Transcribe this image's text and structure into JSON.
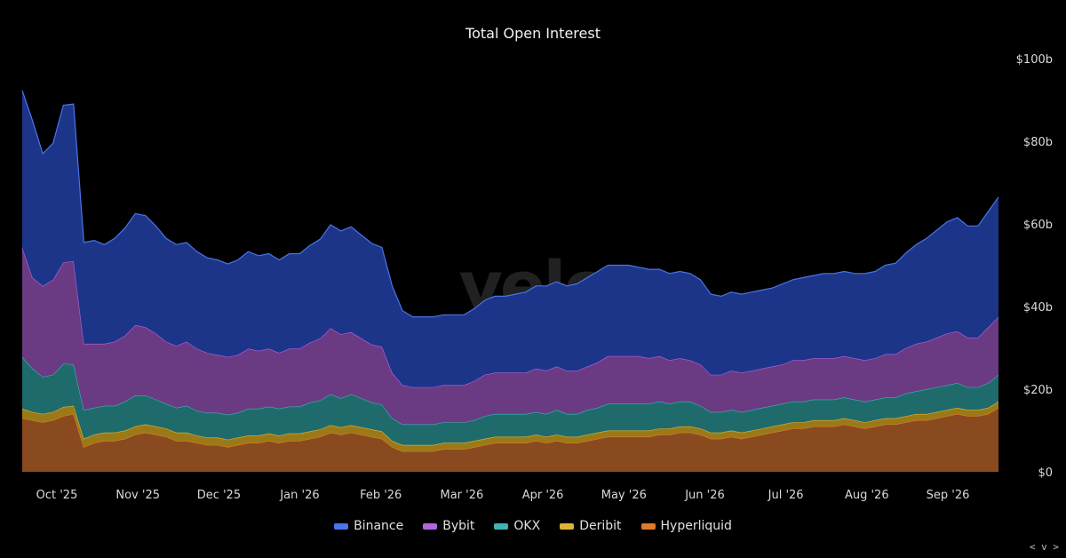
{
  "chart_data": {
    "type": "area",
    "stacked": true,
    "title": "Total Open Interest",
    "watermark": "velo",
    "x_labels": [
      "Oct '25",
      "Nov '25",
      "Dec '25",
      "Jan '26",
      "Feb '26",
      "Mar '26",
      "Apr '26",
      "May '26",
      "Jun '26",
      "Jul '26",
      "Aug '26",
      "Sep '26"
    ],
    "y_ticks": [
      "$0",
      "$20b",
      "$40b",
      "$60b",
      "$80b",
      "$100b"
    ],
    "y_unit": "billions USD",
    "ylim": [
      0,
      100
    ],
    "y_axis_position": "right",
    "grid": false,
    "legend_position": "bottom",
    "series": [
      {
        "name": "Hyperliquid",
        "color": "#8a4a1f",
        "line_color": "#e07a2a",
        "values": [
          13.0,
          12.5,
          12.0,
          12.5,
          13.5,
          14.0,
          6.0,
          7.0,
          7.5,
          7.5,
          8.0,
          9.0,
          9.5,
          9.0,
          8.5,
          7.5,
          7.5,
          7.0,
          6.5,
          6.5,
          6.0,
          6.5,
          7.0,
          7.0,
          7.5,
          7.0,
          7.5,
          7.5,
          8.0,
          8.5,
          9.5,
          9.0,
          9.5,
          9.0,
          8.5,
          8.0,
          6.0,
          5.0,
          5.0,
          5.0,
          5.0,
          5.5,
          5.5,
          5.5,
          6.0,
          6.5,
          7.0,
          7.0,
          7.0,
          7.0,
          7.5,
          7.0,
          7.5,
          7.0,
          7.0,
          7.5,
          8.0,
          8.5,
          8.5,
          8.5,
          8.5,
          8.5,
          9.0,
          9.0,
          9.5,
          9.5,
          9.0,
          8.0,
          8.0,
          8.5,
          8.0,
          8.5,
          9.0,
          9.5,
          10.0,
          10.5,
          10.5,
          11.0,
          11.0,
          11.0,
          11.5,
          11.0,
          10.5,
          11.0,
          11.5,
          11.5,
          12.0,
          12.5,
          12.5,
          13.0,
          13.5,
          14.0,
          13.5,
          13.5,
          14.0,
          15.5
        ]
      },
      {
        "name": "Deribit",
        "color": "#9a7a18",
        "line_color": "#e0b236",
        "values": [
          2.3,
          2.0,
          2.0,
          2.0,
          2.2,
          2.0,
          2.0,
          2.0,
          2.0,
          2.0,
          2.0,
          2.0,
          2.0,
          2.0,
          2.0,
          2.0,
          2.0,
          1.8,
          1.8,
          1.8,
          1.8,
          1.8,
          1.8,
          1.8,
          1.8,
          1.8,
          1.8,
          1.8,
          1.8,
          1.8,
          1.8,
          1.8,
          1.8,
          1.8,
          1.8,
          1.8,
          1.5,
          1.5,
          1.5,
          1.5,
          1.5,
          1.5,
          1.5,
          1.5,
          1.5,
          1.5,
          1.5,
          1.5,
          1.5,
          1.5,
          1.5,
          1.5,
          1.5,
          1.5,
          1.5,
          1.5,
          1.5,
          1.5,
          1.5,
          1.5,
          1.5,
          1.5,
          1.5,
          1.5,
          1.5,
          1.5,
          1.5,
          1.5,
          1.5,
          1.5,
          1.5,
          1.5,
          1.5,
          1.5,
          1.5,
          1.5,
          1.5,
          1.5,
          1.5,
          1.5,
          1.5,
          1.5,
          1.5,
          1.5,
          1.5,
          1.5,
          1.5,
          1.5,
          1.5,
          1.5,
          1.5,
          1.5,
          1.5,
          1.5,
          1.5,
          1.5
        ]
      },
      {
        "name": "OKX",
        "color": "#1f6b6b",
        "line_color": "#3fb2b2",
        "values": [
          12.5,
          10.5,
          9.0,
          9.0,
          10.5,
          10.0,
          7.0,
          6.5,
          6.5,
          6.5,
          7.0,
          7.5,
          7.0,
          6.5,
          6.0,
          6.0,
          6.5,
          6.0,
          6.0,
          6.0,
          6.0,
          6.0,
          6.5,
          6.5,
          6.5,
          6.5,
          6.5,
          6.5,
          7.0,
          7.0,
          7.5,
          7.0,
          7.5,
          7.0,
          6.5,
          6.5,
          5.5,
          5.0,
          5.0,
          5.0,
          5.0,
          5.0,
          5.0,
          5.0,
          5.0,
          5.5,
          5.5,
          5.5,
          5.5,
          5.5,
          5.5,
          5.5,
          6.0,
          5.5,
          5.5,
          6.0,
          6.0,
          6.5,
          6.5,
          6.5,
          6.5,
          6.5,
          6.5,
          6.0,
          6.0,
          6.0,
          5.5,
          5.0,
          5.0,
          5.0,
          5.0,
          5.0,
          5.0,
          5.0,
          5.0,
          5.0,
          5.0,
          5.0,
          5.0,
          5.0,
          5.0,
          5.0,
          5.0,
          5.0,
          5.0,
          5.0,
          5.5,
          5.5,
          6.0,
          6.0,
          6.0,
          6.0,
          5.5,
          5.5,
          6.0,
          6.5
        ]
      },
      {
        "name": "Bybit",
        "color": "#6a3b82",
        "line_color": "#b563df",
        "values": [
          26.5,
          22.0,
          22.0,
          23.0,
          24.5,
          25.0,
          16.0,
          15.5,
          15.0,
          15.5,
          16.0,
          17.0,
          16.5,
          16.0,
          15.0,
          15.0,
          15.5,
          15.0,
          14.5,
          14.0,
          14.0,
          14.0,
          14.5,
          14.0,
          14.0,
          13.5,
          14.0,
          14.0,
          14.5,
          15.0,
          16.0,
          15.5,
          15.0,
          14.5,
          14.0,
          14.0,
          11.0,
          9.5,
          9.0,
          9.0,
          9.0,
          9.0,
          9.0,
          9.0,
          9.5,
          10.0,
          10.0,
          10.0,
          10.0,
          10.0,
          10.5,
          10.5,
          10.5,
          10.5,
          10.5,
          10.5,
          11.0,
          11.5,
          11.5,
          11.5,
          11.5,
          11.0,
          11.0,
          10.5,
          10.5,
          10.0,
          10.0,
          9.0,
          9.0,
          9.5,
          9.5,
          9.5,
          9.5,
          9.5,
          9.5,
          10.0,
          10.0,
          10.0,
          10.0,
          10.0,
          10.0,
          10.0,
          10.0,
          10.0,
          10.5,
          10.5,
          11.0,
          11.5,
          11.5,
          12.0,
          12.5,
          12.5,
          12.0,
          12.0,
          13.5,
          14.0
        ]
      },
      {
        "name": "Binance",
        "color": "#1c3589",
        "line_color": "#4a74e8",
        "values": [
          38.0,
          38.0,
          32.0,
          33.0,
          38.0,
          38.0,
          24.5,
          25.0,
          24.0,
          25.0,
          26.0,
          27.0,
          27.0,
          26.0,
          25.0,
          24.5,
          24.0,
          23.5,
          23.0,
          23.0,
          22.5,
          23.0,
          23.5,
          23.0,
          23.0,
          22.5,
          23.0,
          23.0,
          23.5,
          24.0,
          25.0,
          25.0,
          25.5,
          25.0,
          24.5,
          24.0,
          21.0,
          18.0,
          17.0,
          17.0,
          17.0,
          17.0,
          17.0,
          17.0,
          17.5,
          18.0,
          18.5,
          18.5,
          19.0,
          19.5,
          20.0,
          20.5,
          20.5,
          20.5,
          21.0,
          21.5,
          22.0,
          22.0,
          22.0,
          22.0,
          21.5,
          21.5,
          21.0,
          21.0,
          21.0,
          21.0,
          20.5,
          19.5,
          19.0,
          19.0,
          19.0,
          19.0,
          19.0,
          19.0,
          19.5,
          19.5,
          20.0,
          20.0,
          20.5,
          20.5,
          20.5,
          20.5,
          21.0,
          21.0,
          21.5,
          22.0,
          23.0,
          24.0,
          25.0,
          26.0,
          27.0,
          27.5,
          27.0,
          27.0,
          28.0,
          29.0
        ]
      }
    ]
  },
  "ui": {
    "corner_control": "< v >"
  }
}
